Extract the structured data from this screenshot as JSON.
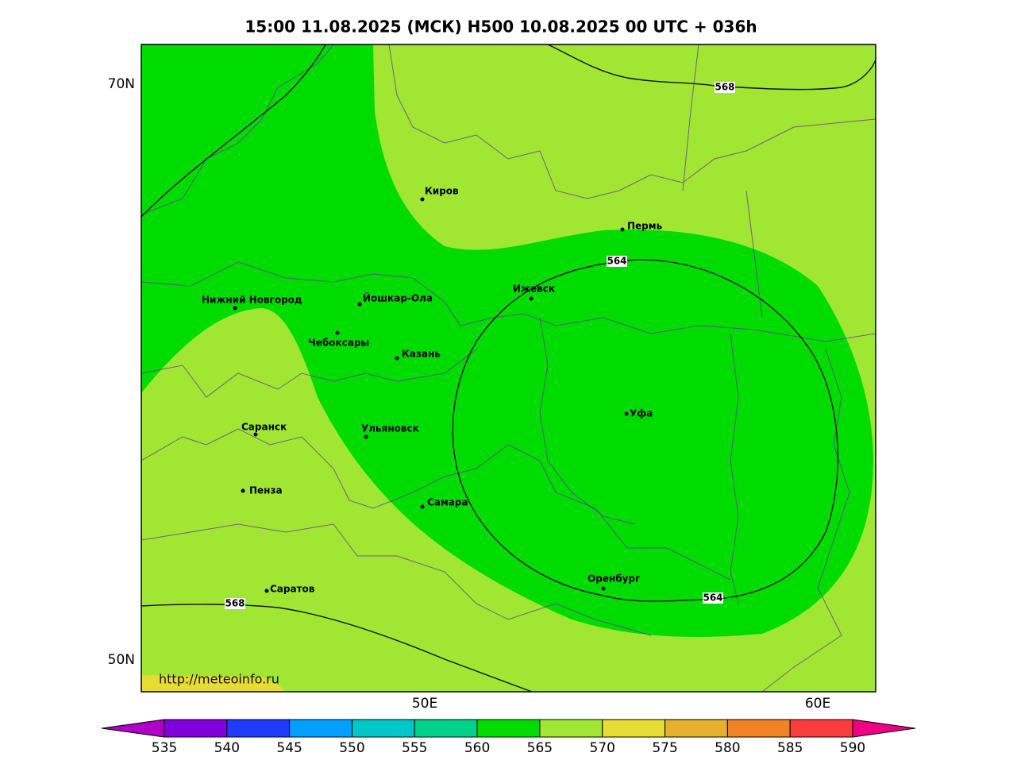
{
  "title": "15:00 11.08.2025 (МСК) H500  10.08.2025 00 UTC + 036h",
  "url": "http://meteoinfo.ru",
  "lat_labels": [
    "70N",
    "50N"
  ],
  "lon_labels": [
    "50E",
    "60E"
  ],
  "cities": [
    "Киров",
    "Пермь",
    "Нижний Новгород",
    "Йошкар-Ола",
    "Ижевск",
    "Чебоксары",
    "Казань",
    "Уфа",
    "Саранск",
    "Ульяновск",
    "Пенза",
    "Самара",
    "Оренбург",
    "Саратов"
  ],
  "contour_labels": [
    "568",
    "564",
    "564",
    "568"
  ],
  "colorbar": {
    "ticks": [
      535,
      540,
      545,
      550,
      555,
      560,
      565,
      570,
      575,
      580,
      585,
      590
    ],
    "colors": [
      "#b000c8",
      "#8200dc",
      "#1e3cff",
      "#00a0ff",
      "#00c8c8",
      "#00d28c",
      "#00dc00",
      "#a0e632",
      "#e6dc32",
      "#e6af2d",
      "#f08228",
      "#fa3c3c",
      "#f00082"
    ]
  }
}
